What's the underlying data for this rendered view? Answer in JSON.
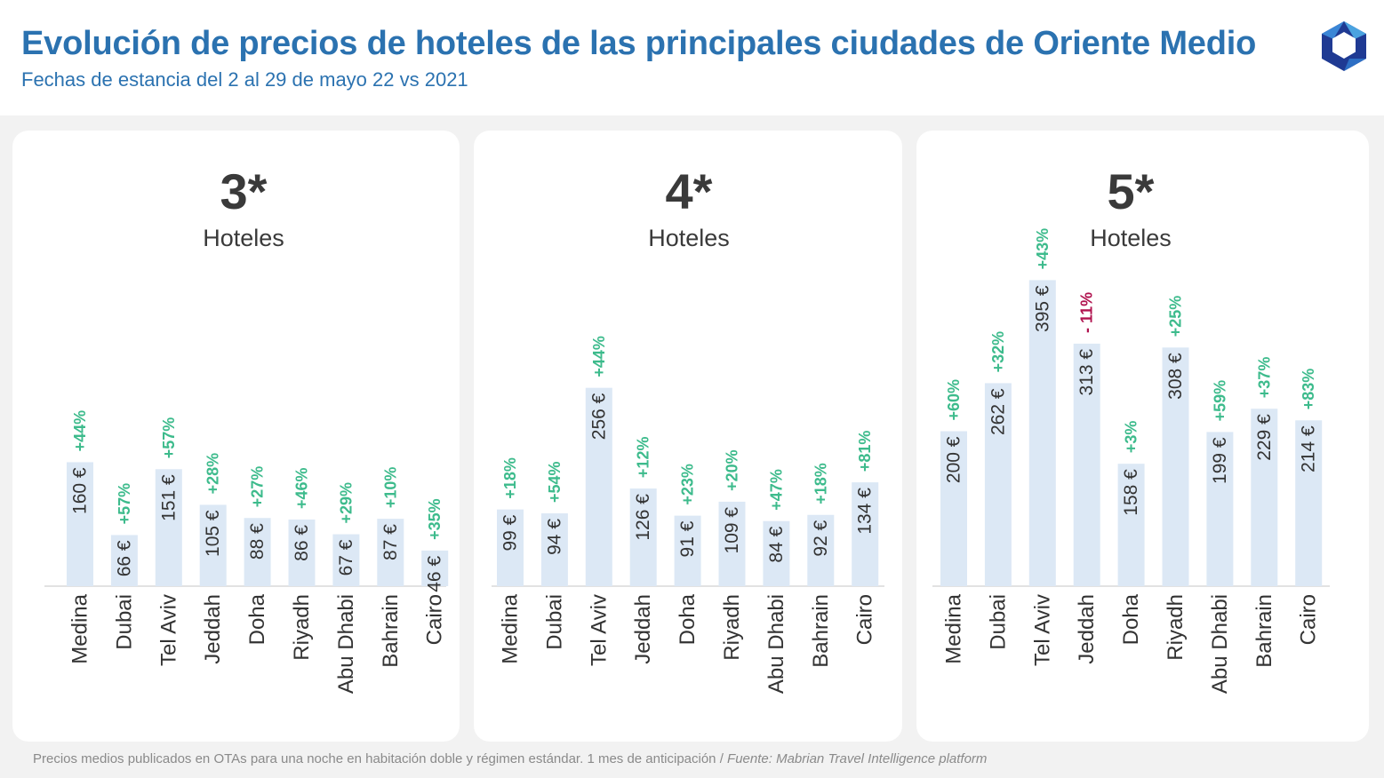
{
  "header": {
    "title": "Evolución de precios de hoteles de las principales ciudades de Oriente Medio",
    "subtitle": "Fechas de estancia del 2 al 29 de mayo 22 vs 2021",
    "logo_icon": "hexagon-logo-icon"
  },
  "footnote": {
    "text": "Precios medios publicados en OTAs para una noche en habitación doble y régimen estándar. 1 mes de anticipación",
    "separator": " / ",
    "source": "Fuente: Mabrian Travel Intelligence platform"
  },
  "colors": {
    "title": "#2b72b0",
    "bar": "#dce8f5",
    "positive": "#3dbb8c",
    "negative": "#b0124e",
    "text": "#333333"
  },
  "chart_data": [
    {
      "type": "bar",
      "title": "3*",
      "subtitle": "Hoteles",
      "categories": [
        "Medina",
        "Dubai",
        "Tel Aviv",
        "Jeddah",
        "Doha",
        "Riyadh",
        "Abu Dhabi",
        "Bahrain",
        "Cairo"
      ],
      "values": [
        160,
        66,
        151,
        105,
        88,
        86,
        67,
        87,
        46
      ],
      "value_labels": [
        "160 €",
        "66 €",
        "151 €",
        "105 €",
        "88 €",
        "86 €",
        "67 €",
        "87 €",
        "46 €"
      ],
      "change_labels": [
        "+44%",
        "+57%",
        "+57%",
        "+28%",
        "+27%",
        "+46%",
        "+29%",
        "+10%",
        "+35%"
      ],
      "ylim": [
        0,
        420
      ]
    },
    {
      "type": "bar",
      "title": "4*",
      "subtitle": "Hoteles",
      "categories": [
        "Medina",
        "Dubai",
        "Tel Aviv",
        "Jeddah",
        "Doha",
        "Riyadh",
        "Abu Dhabi",
        "Bahrain",
        "Cairo"
      ],
      "values": [
        99,
        94,
        256,
        126,
        91,
        109,
        84,
        92,
        134
      ],
      "value_labels": [
        "99 €",
        "94 €",
        "256 €",
        "126 €",
        "91 €",
        "109 €",
        "84 €",
        "92 €",
        "134 €"
      ],
      "change_labels": [
        "+18%",
        "+54%",
        "+44%",
        "+12%",
        "+23%",
        "+20%",
        "+47%",
        "+18%",
        "+81%"
      ],
      "ylim": [
        0,
        420
      ]
    },
    {
      "type": "bar",
      "title": "5*",
      "subtitle": "Hoteles",
      "categories": [
        "Medina",
        "Dubai",
        "Tel Aviv",
        "Jeddah",
        "Doha",
        "Riyadh",
        "Abu Dhabi",
        "Bahrain",
        "Cairo"
      ],
      "values": [
        200,
        262,
        395,
        313,
        158,
        308,
        199,
        229,
        214
      ],
      "value_labels": [
        "200 €",
        "262 €",
        "395 €",
        "313 €",
        "158 €",
        "308 €",
        "199 €",
        "229 €",
        "214 €"
      ],
      "change_labels": [
        "+60%",
        "+32%",
        "+43%",
        "- 11%",
        "+3%",
        "+25%",
        "+59%",
        "+37%",
        "+83%"
      ],
      "ylim": [
        0,
        420
      ]
    }
  ]
}
